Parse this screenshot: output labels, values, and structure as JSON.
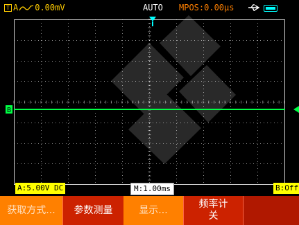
{
  "topbar": {
    "trigger_source": "A",
    "trigger_level": "0.00mV",
    "mode": "AUTO",
    "mpos": "MPOS:0.00µs"
  },
  "channel_marker": "B",
  "status": {
    "channel_a": "A:5.00V DC",
    "timebase": "M:1.00ms",
    "channel_b": "B:Off"
  },
  "softkeys": [
    {
      "label": "获取方式..."
    },
    {
      "label": "参数测量"
    },
    {
      "label": "显示..."
    },
    {
      "label": "频率计",
      "sub": "关"
    },
    {
      "label": ""
    }
  ],
  "colors": {
    "trace": "#00ff44",
    "grid": "#ffffff",
    "trigger": "#00ffff",
    "softkey_red": "#cc2200",
    "softkey_orange": "#ff8000",
    "channel_label": "#ffff00"
  }
}
